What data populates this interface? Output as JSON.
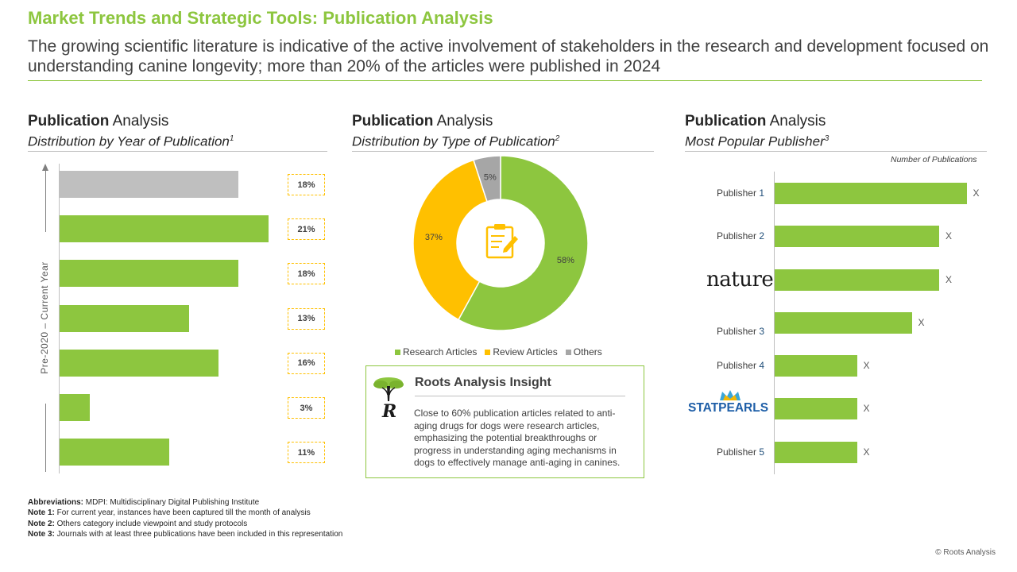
{
  "header": {
    "title": "Market Trends and Strategic Tools: Publication Analysis",
    "subtitle": "The growing scientific literature is indicative of the active involvement of stakeholders in the research and development focused on understanding canine longevity; more than 20% of the articles were published in 2024"
  },
  "panels": {
    "year": {
      "title_bold": "Publication",
      "title_rest": " Analysis",
      "subtitle": "Distribution by Year of Publication",
      "note_mark": "1"
    },
    "type": {
      "title_bold": "Publication",
      "title_rest": " Analysis",
      "subtitle": "Distribution by Type of Publication",
      "note_mark": "2"
    },
    "publisher": {
      "title_bold": "Publication",
      "title_rest": " Analysis",
      "subtitle": "Most Popular Publisher",
      "note_mark": "3"
    }
  },
  "colors": {
    "accent": "#8dc63f",
    "review": "#ffc000",
    "others": "#a6a6a6",
    "current_year": "#bfbfbf"
  },
  "chart_data": [
    {
      "type": "bar",
      "orientation": "horizontal",
      "axis_label": "Pre-2020 – Current Year",
      "value_labels": [
        "18%",
        "21%",
        "18%",
        "13%",
        "16%",
        "3%",
        "11%"
      ],
      "values": [
        18,
        21,
        18,
        13,
        16,
        3,
        11
      ],
      "highlight_index": 0
    },
    {
      "type": "pie",
      "donut": true,
      "center_icon": "clipboard-edit-icon",
      "slices": [
        {
          "name": "Research Articles",
          "value": 58,
          "label": "58%"
        },
        {
          "name": "Review Articles",
          "value": 37,
          "label": "37%"
        },
        {
          "name": "Others",
          "value": 5,
          "label": "5%"
        }
      ]
    },
    {
      "type": "bar",
      "orientation": "horizontal",
      "unit_label": "Number of Publications",
      "categories": [
        {
          "prefix": "Publisher ",
          "num": "1",
          "logo": "",
          "value_label": "X",
          "relative": 0.7
        },
        {
          "prefix": "Publisher ",
          "num": "2",
          "logo": "",
          "value_label": "X",
          "relative": 0.6
        },
        {
          "prefix": "",
          "num": "",
          "logo": "nature",
          "value_label": "X",
          "relative": 0.6
        },
        {
          "prefix": "Publisher ",
          "num": "3",
          "logo": "",
          "value_label": "X",
          "relative": 0.5
        },
        {
          "prefix": "Publisher ",
          "num": "4",
          "logo": "",
          "value_label": "X",
          "relative": 0.3
        },
        {
          "prefix": "",
          "num": "",
          "logo": "STATPEARLS",
          "value_label": "X",
          "relative": 0.3
        },
        {
          "prefix": "Publisher ",
          "num": "5",
          "logo": "",
          "value_label": "X",
          "relative": 0.3
        }
      ]
    }
  ],
  "insight": {
    "title": "Roots Analysis Insight",
    "text": "Close to 60% publication articles related to anti-aging drugs for dogs were research articles, emphasizing the potential breakthroughs or progress in understanding aging mechanisms in dogs to effectively manage anti-aging in canines.",
    "logo_icon": "roots-tree-logo-icon"
  },
  "notes": [
    {
      "label": "Abbreviations:",
      "text": " MDPI: Multidisciplinary Digital Publishing Institute"
    },
    {
      "label": "Note 1:",
      "text": " For current year, instances have been captured till the month of analysis"
    },
    {
      "label": "Note 2:",
      "text": " Others category include viewpoint and study protocols"
    },
    {
      "label": "Note 3:",
      "text": " Journals with at least three publications have been included in this representation"
    }
  ],
  "copyright": "© Roots Analysis"
}
